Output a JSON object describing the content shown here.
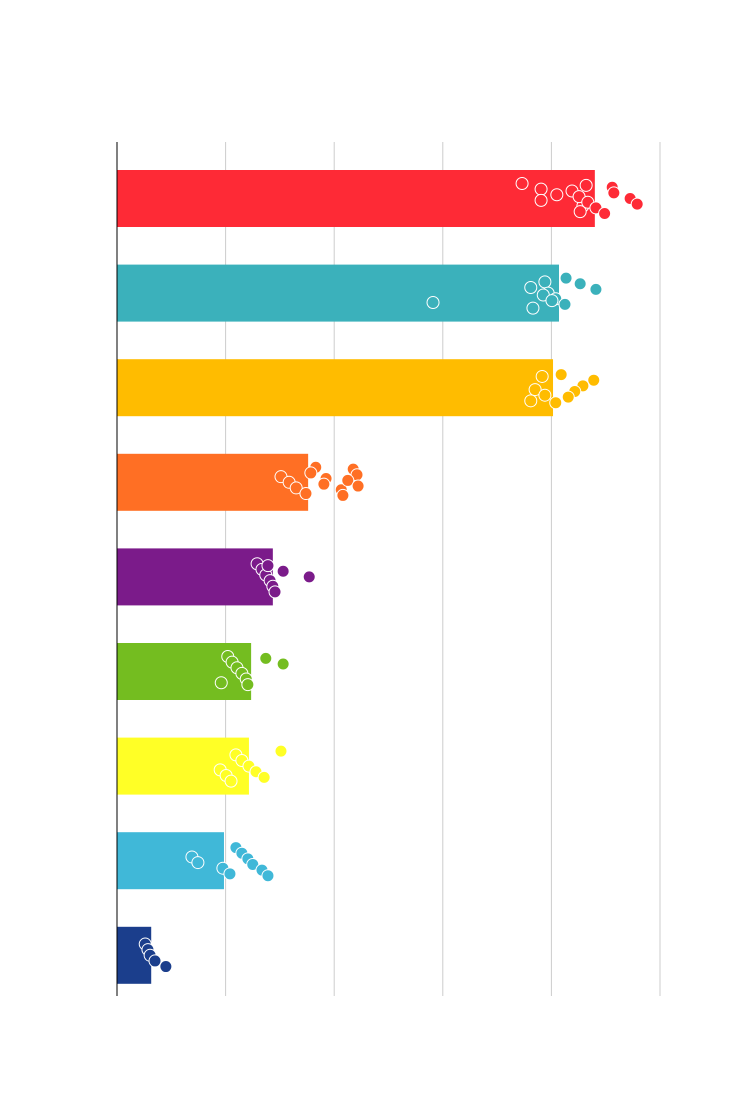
{
  "chart_data": {
    "type": "hbar-dots",
    "categories": [
      null,
      null,
      null,
      null,
      null,
      null,
      null,
      null,
      null
    ],
    "values": [
      88,
      81.4,
      80.3,
      35.2,
      28.7,
      24.7,
      24.3,
      19.7,
      6.3
    ],
    "colors": [
      "#fe2a36",
      "#3bb1bb",
      "#ffbc00",
      "#ff6f24",
      "#7b1b8a",
      "#74bd20",
      "#ffff26",
      "#40b8d8",
      "#1b3e8c"
    ],
    "points": [
      [
        74.6,
        78.1,
        81.0,
        78.1,
        85.8,
        85.3,
        86.4,
        83.8,
        85.1,
        86.7,
        88.2,
        89.8,
        91.2,
        91.5,
        94.5,
        95.8
      ],
      [
        58.2,
        76.6,
        78.8,
        76.2,
        79.4,
        80.8,
        82.5,
        82.7,
        85.3,
        88.2,
        78.5,
        80.1
      ],
      [
        77.0,
        78.8,
        76.2,
        81.8,
        87.8,
        85.8,
        84.3,
        83.1,
        80.8,
        78.3
      ],
      [
        30.2,
        31.7,
        33.0,
        34.8,
        36.6,
        35.7,
        38.5,
        38.1,
        41.3,
        41.6,
        43.5,
        44.2,
        42.5,
        44.4
      ],
      [
        25.8,
        26.7,
        27.4,
        28.2,
        28.7,
        29.1,
        27.8,
        30.6,
        35.4
      ],
      [
        19.2,
        20.4,
        21.2,
        22.1,
        23.0,
        23.8,
        24.1,
        27.4,
        30.6
      ],
      [
        19.0,
        20.1,
        21.0,
        21.9,
        23.0,
        24.3,
        25.6,
        27.1,
        30.2
      ],
      [
        13.8,
        14.9,
        19.5,
        20.8,
        21.9,
        23.0,
        24.1,
        25.0,
        26.7,
        27.8
      ],
      [
        5.2,
        5.7,
        6.1,
        7.0,
        9.0
      ]
    ],
    "xlim": [
      0,
      100
    ],
    "xticks": [
      0,
      20,
      40,
      60,
      80,
      100
    ],
    "grid": true
  }
}
